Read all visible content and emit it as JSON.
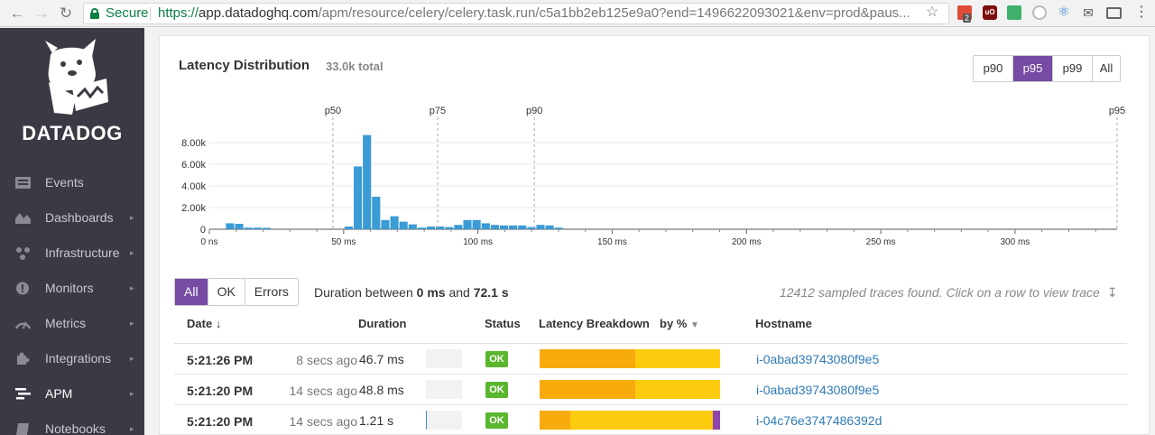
{
  "browser": {
    "secure_label": "Secure",
    "url_scheme": "https://",
    "url_host": "app.datadoghq.com",
    "url_path": "/apm/resource/celery/celery.task.run/c5a1bb2eb125e9a0?end=1496622093021&env=prod&paus...",
    "calendar_badge": "2",
    "ublock_label": "uO"
  },
  "sidebar": {
    "logo_text": "DATADOG",
    "items": [
      {
        "label": "Events",
        "icon": "events-icon",
        "has_chevron": false
      },
      {
        "label": "Dashboards",
        "icon": "dashboards-icon",
        "has_chevron": true
      },
      {
        "label": "Infrastructure",
        "icon": "infrastructure-icon",
        "has_chevron": true
      },
      {
        "label": "Monitors",
        "icon": "monitors-icon",
        "has_chevron": true
      },
      {
        "label": "Metrics",
        "icon": "metrics-icon",
        "has_chevron": true
      },
      {
        "label": "Integrations",
        "icon": "integrations-icon",
        "has_chevron": true
      },
      {
        "label": "APM",
        "icon": "apm-icon",
        "has_chevron": true,
        "active": true
      },
      {
        "label": "Notebooks",
        "icon": "notebooks-icon",
        "has_chevron": true
      }
    ]
  },
  "latency": {
    "title": "Latency Distribution",
    "total": "33.0k total",
    "percentile_buttons": [
      "p90",
      "p95",
      "p99",
      "All"
    ],
    "active_percentile": "p95"
  },
  "chart_data": {
    "type": "bar",
    "title": "Latency Distribution",
    "x_unit": "ms",
    "xlim": [
      0,
      338
    ],
    "ylim": [
      0,
      9500
    ],
    "x_ticks": [
      0,
      50,
      100,
      150,
      200,
      250,
      300
    ],
    "x_tick_labels": [
      "0 ns",
      "50 ms",
      "100 ms",
      "150 ms",
      "200 ms",
      "250 ms",
      "300 ms"
    ],
    "y_ticks": [
      0,
      2000,
      4000,
      6000,
      8000
    ],
    "y_tick_labels": [
      "0",
      "2.00k",
      "4.00k",
      "6.00k",
      "8.00k"
    ],
    "bin_start": 6,
    "bin_width": 3.4,
    "values": [
      550,
      500,
      150,
      150,
      130,
      0,
      0,
      0,
      0,
      0,
      0,
      0,
      0,
      250,
      5800,
      8700,
      3000,
      850,
      1200,
      700,
      450,
      150,
      250,
      250,
      200,
      400,
      850,
      850,
      550,
      400,
      350,
      350,
      350,
      200,
      400,
      350,
      150
    ],
    "markers": [
      {
        "label": "p50",
        "x": 46
      },
      {
        "label": "p75",
        "x": 85
      },
      {
        "label": "p90",
        "x": 121
      },
      {
        "label": "p95",
        "x": 338
      }
    ],
    "bar_color": "#3b9bd5",
    "grid": true
  },
  "filters": {
    "buttons": [
      "All",
      "OK",
      "Errors"
    ],
    "active": "All",
    "duration_prefix": "Duration between",
    "duration_min": "0 ms",
    "duration_and": "and",
    "duration_max": "72.1 s",
    "traces_found": "12412 sampled traces found. Click on a row to view trace"
  },
  "table": {
    "headers": {
      "date": "Date",
      "duration": "Duration",
      "status": "Status",
      "latency": "Latency Breakdown",
      "by": "by %",
      "hostname": "Hostname"
    },
    "rows": [
      {
        "time": "5:21:26 PM",
        "ago": "8 secs ago",
        "duration": "46.7 ms",
        "duration_fraction": 0.0,
        "status": "OK",
        "breakdown": [
          {
            "pct": 53,
            "color": "#f7ab0d"
          },
          {
            "pct": 47,
            "color": "#fdcb0e"
          }
        ],
        "host": "i-0abad39743080f9e5"
      },
      {
        "time": "5:21:20 PM",
        "ago": "14 secs ago",
        "duration": "48.8 ms",
        "duration_fraction": 0.0,
        "status": "OK",
        "breakdown": [
          {
            "pct": 53,
            "color": "#f7ab0d"
          },
          {
            "pct": 47,
            "color": "#fdcb0e"
          }
        ],
        "host": "i-0abad39743080f9e5"
      },
      {
        "time": "5:21:20 PM",
        "ago": "14 secs ago",
        "duration": "1.21 s",
        "duration_fraction": 0.02,
        "status": "OK",
        "breakdown": [
          {
            "pct": 17,
            "color": "#f7ab0d"
          },
          {
            "pct": 79,
            "color": "#fdcb0e"
          },
          {
            "pct": 4,
            "color": "#8e44ad"
          }
        ],
        "host": "i-04c76e3747486392d"
      }
    ]
  }
}
